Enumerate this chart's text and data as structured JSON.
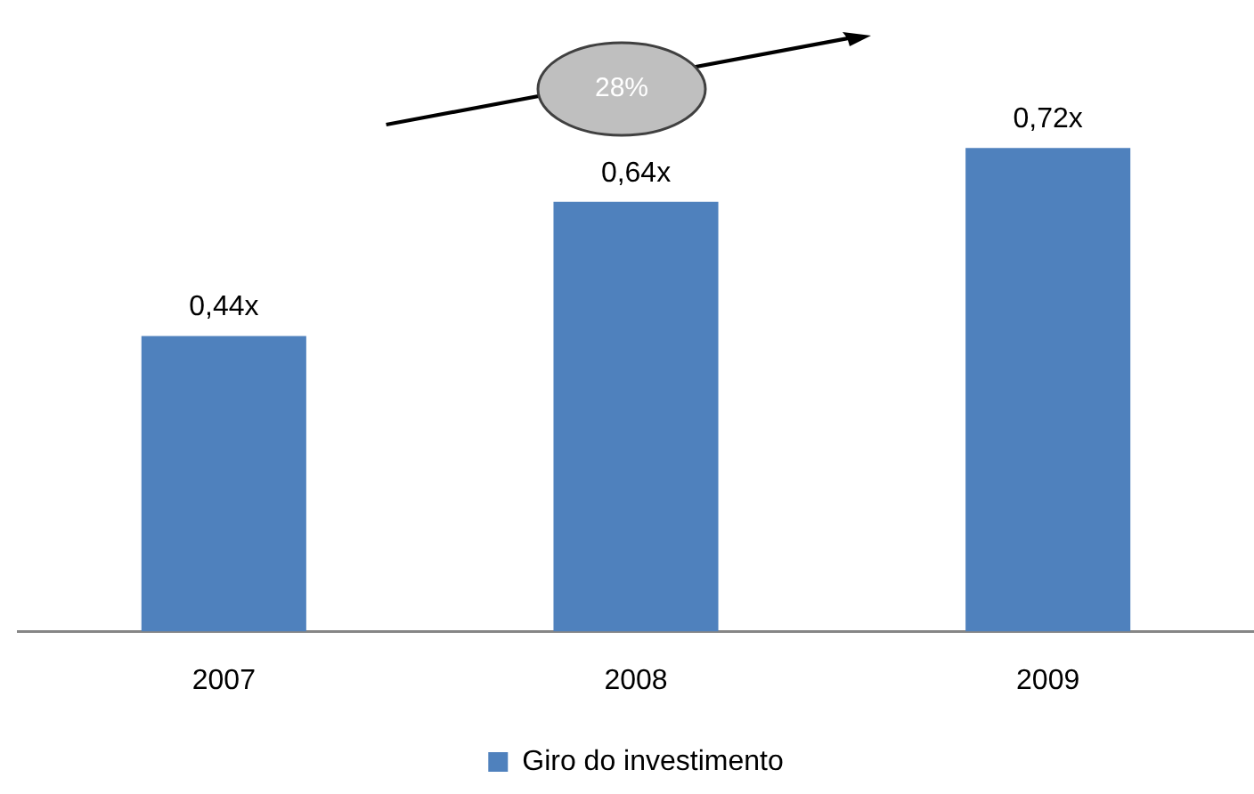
{
  "chart_data": {
    "type": "bar",
    "categories": [
      "2007",
      "2008",
      "2009"
    ],
    "series": [
      {
        "name": "Giro do investimento",
        "color": "#4f81bd",
        "values": [
          0.44,
          0.64,
          0.72
        ],
        "value_labels": [
          "0,44x",
          "0,64x",
          "0,72x"
        ]
      }
    ],
    "tick_labels": "x",
    "grid": false,
    "legend": "bottom",
    "annotations": [
      "28%"
    ]
  }
}
